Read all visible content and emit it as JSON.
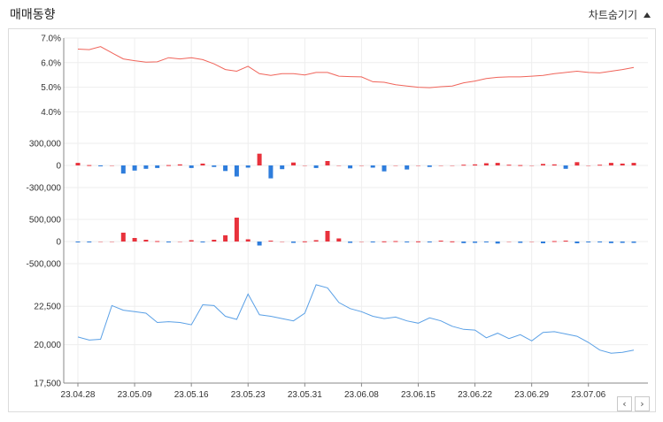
{
  "header": {
    "title": "매매동향",
    "toggle_label": "차트숨기기"
  },
  "nav": {
    "prev": "‹",
    "next": "›"
  },
  "colors": {
    "rate_line": "#f0645a",
    "up_bar": "#e8323c",
    "down_bar": "#2e7ddc",
    "price_line": "#5aa0e6",
    "grid": "#eeeeee"
  },
  "chart_data": {
    "type": "line",
    "x": [
      "23.04.28",
      "23.05.02",
      "23.05.03",
      "23.05.04",
      "23.05.08",
      "23.05.09",
      "23.05.10",
      "23.05.11",
      "23.05.12",
      "23.05.15",
      "23.05.16",
      "23.05.17",
      "23.05.18",
      "23.05.19",
      "23.05.22",
      "23.05.23",
      "23.05.24",
      "23.05.25",
      "23.05.26",
      "23.05.30",
      "23.05.31",
      "23.06.01",
      "23.06.02",
      "23.06.05",
      "23.06.07",
      "23.06.08",
      "23.06.09",
      "23.06.12",
      "23.06.13",
      "23.06.14",
      "23.06.15",
      "23.06.16",
      "23.06.19",
      "23.06.20",
      "23.06.21",
      "23.06.22",
      "23.06.23",
      "23.06.26",
      "23.06.27",
      "23.06.28",
      "23.06.29",
      "23.06.30",
      "23.07.03",
      "23.07.04",
      "23.07.05",
      "23.07.06",
      "23.07.07",
      "23.07.10",
      "23.07.11",
      "23.07.12"
    ],
    "x_tick_labels": [
      "23.04.28",
      "23.05.09",
      "23.05.16",
      "23.05.23",
      "23.05.31",
      "23.06.08",
      "23.06.15",
      "23.06.22",
      "23.06.29",
      "23.07.06"
    ],
    "panels": [
      {
        "name": "rate",
        "type": "line",
        "ylim": [
          3.4,
          7.0
        ],
        "yticks": [
          "7.0%",
          "6.0%",
          "5.0%",
          "4.0%"
        ],
        "ytick_values": [
          7.0,
          6.0,
          5.0,
          4.0
        ],
        "values": [
          6.55,
          6.53,
          6.65,
          6.4,
          6.15,
          6.08,
          6.02,
          6.03,
          6.2,
          6.15,
          6.2,
          6.12,
          5.95,
          5.72,
          5.65,
          5.85,
          5.55,
          5.48,
          5.55,
          5.55,
          5.5,
          5.6,
          5.6,
          5.45,
          5.43,
          5.42,
          5.22,
          5.2,
          5.1,
          5.05,
          5.0,
          4.98,
          5.02,
          5.05,
          5.18,
          5.25,
          5.35,
          5.4,
          5.42,
          5.42,
          5.45,
          5.48,
          5.55,
          5.6,
          5.65,
          5.6,
          5.58,
          5.65,
          5.72,
          5.8
        ]
      },
      {
        "name": "foreign-net",
        "type": "bar",
        "ylim": [
          -360000,
          360000
        ],
        "yticks": [
          "300,000",
          "0",
          "-300,000"
        ],
        "ytick_values": [
          300000,
          0,
          -300000
        ],
        "values": [
          35000,
          5000,
          -3000,
          0,
          -110000,
          -70000,
          -45000,
          -35000,
          5000,
          15000,
          -35000,
          25000,
          -20000,
          -75000,
          -150000,
          -30000,
          160000,
          -175000,
          -50000,
          40000,
          0,
          -35000,
          60000,
          0,
          -40000,
          0,
          -30000,
          -80000,
          0,
          -55000,
          0,
          -20000,
          0,
          0,
          10000,
          15000,
          30000,
          35000,
          10000,
          5000,
          0,
          20000,
          15000,
          -45000,
          45000,
          0,
          10000,
          35000,
          25000,
          35000
        ]
      },
      {
        "name": "institution-net",
        "type": "bar",
        "ylim": [
          -600000,
          600000
        ],
        "yticks": [
          "500,000",
          "0",
          "-500,000"
        ],
        "ytick_values": [
          500000,
          0,
          -500000
        ],
        "values": [
          -20000,
          -5000,
          0,
          0,
          200000,
          80000,
          40000,
          10000,
          -5000,
          0,
          30000,
          -20000,
          40000,
          140000,
          540000,
          50000,
          -90000,
          20000,
          0,
          -30000,
          5000,
          30000,
          240000,
          70000,
          -30000,
          0,
          -5000,
          5000,
          10000,
          -5000,
          5000,
          -5000,
          20000,
          5000,
          -35000,
          -30000,
          -20000,
          -45000,
          0,
          -30000,
          0,
          -40000,
          10000,
          20000,
          -40000,
          -20000,
          -10000,
          -35000,
          -30000,
          -30000
        ]
      },
      {
        "name": "price",
        "type": "line",
        "ylim": [
          17500,
          24300
        ],
        "yticks": [
          "22,500",
          "20,000",
          "17,500"
        ],
        "ytick_values": [
          22500,
          20000,
          17500
        ],
        "values": [
          20500,
          20300,
          20350,
          22550,
          22250,
          22150,
          22050,
          21450,
          21500,
          21450,
          21300,
          22600,
          22550,
          21850,
          21650,
          23300,
          21950,
          21850,
          21700,
          21550,
          22050,
          23900,
          23700,
          22750,
          22350,
          22150,
          21850,
          21700,
          21800,
          21550,
          21400,
          21750,
          21550,
          21200,
          21000,
          20950,
          20450,
          20750,
          20400,
          20650,
          20250,
          20800,
          20850,
          20700,
          20550,
          20150,
          19650,
          19450,
          19500,
          19650
        ]
      }
    ]
  }
}
